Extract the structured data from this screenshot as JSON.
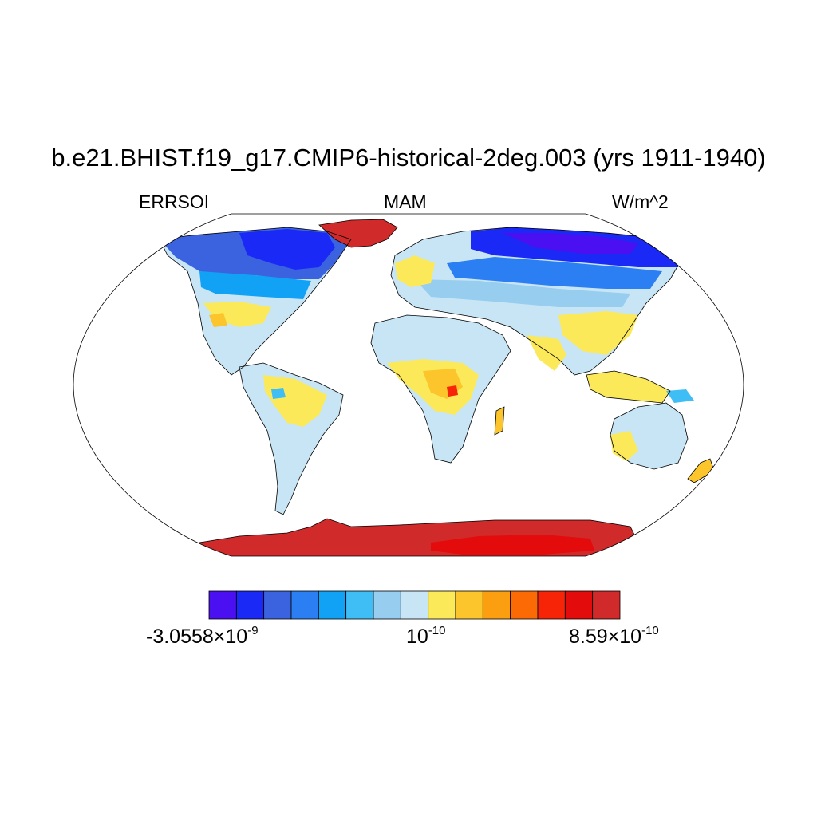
{
  "title": "b.e21.BHIST.f19_g17.CMIP6-historical-2deg.003 (yrs 1911-1940)",
  "variable": "ERRSOI",
  "season": "MAM",
  "units": "W/m^2",
  "colorbar": {
    "colors": [
      "#4b10f2",
      "#1a29f5",
      "#3b63e0",
      "#2c7ff2",
      "#12a2f5",
      "#3fbdf5",
      "#97cdee",
      "#c8e5f5",
      "#fbe95a",
      "#fbc52b",
      "#fb9f11",
      "#fb6a05",
      "#f82408",
      "#e30b0b",
      "#d12a2a"
    ],
    "labels": [
      {
        "mantissa": "-3.0558",
        "times": "×10",
        "exp": "-9"
      },
      {
        "mantissa": "",
        "times": "10",
        "exp": "-10"
      },
      {
        "mantissa": "8.59",
        "times": "×10",
        "exp": "-10"
      }
    ]
  },
  "map": {
    "projection": "Robinson",
    "ocean_color": "#ffffff",
    "coastline_color": "#000000"
  }
}
